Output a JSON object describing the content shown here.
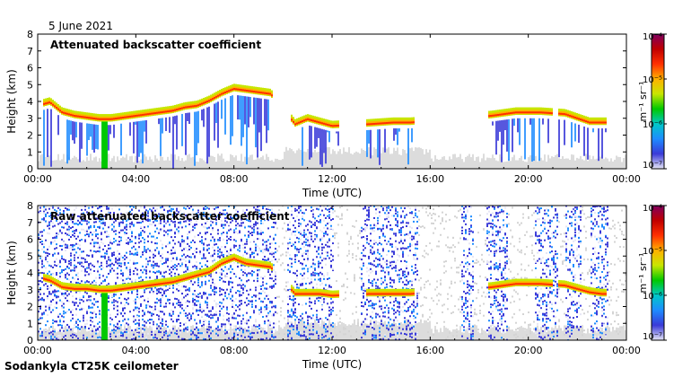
{
  "header": {
    "date": "5 June 2021"
  },
  "footer": {
    "instrument": "Sodankyla CT25K ceilometer"
  },
  "colorbar": {
    "unit": "m⁻¹ sr⁻¹",
    "ticks": [
      "10⁻⁴",
      "10⁻⁵",
      "10⁻⁶",
      "10⁻⁷"
    ],
    "colors": [
      "#e6e6f5",
      "#3a3ad8",
      "#1e8cff",
      "#00c8c8",
      "#00c800",
      "#c8e600",
      "#ffb000",
      "#ff3000",
      "#c00000",
      "#800060"
    ]
  },
  "chart_data": [
    {
      "type": "heatmap",
      "title": "Attenuated backscatter coefficient",
      "xlabel": "Time (UTC)",
      "ylabel": "Height (km)",
      "xticks": [
        "00:00",
        "04:00",
        "08:00",
        "12:00",
        "16:00",
        "20:00",
        "00:00"
      ],
      "yticks": [
        "0",
        "1",
        "2",
        "3",
        "4",
        "5",
        "6",
        "7",
        "8"
      ],
      "xlim_hours": [
        0,
        24
      ],
      "ylim_km": [
        0,
        8
      ],
      "color_scale": "log",
      "clim": [
        1e-07,
        0.0001
      ],
      "cloud_layer": {
        "time_hours": [
          0,
          0.5,
          1.0,
          1.5,
          2.0,
          2.5,
          3.0,
          3.5,
          4.0,
          4.5,
          5.0,
          5.5,
          6.0,
          6.5,
          7.0,
          7.5,
          8.0,
          8.5,
          9.0,
          9.5,
          10.5,
          11.0,
          11.5,
          12.0,
          13.5,
          14.5,
          15.2,
          18.5,
          19.5,
          20.5,
          21.5,
          22.5,
          23.0
        ],
        "base_height_km": [
          3.6,
          3.8,
          3.2,
          3.0,
          2.9,
          2.8,
          2.8,
          2.9,
          3.0,
          3.1,
          3.2,
          3.3,
          3.5,
          3.6,
          3.9,
          4.3,
          4.6,
          4.5,
          4.4,
          4.3,
          2.5,
          2.8,
          2.6,
          2.4,
          2.5,
          2.6,
          2.6,
          3.0,
          3.2,
          3.2,
          3.1,
          2.6,
          2.6
        ]
      }
    },
    {
      "type": "heatmap",
      "title": "Raw attenuated backscatter coefficient",
      "xlabel": "Time (UTC)",
      "ylabel": "Height (km)",
      "xticks": [
        "00:00",
        "04:00",
        "08:00",
        "12:00",
        "16:00",
        "20:00",
        "00:00"
      ],
      "yticks": [
        "0",
        "1",
        "2",
        "3",
        "4",
        "5",
        "6",
        "7",
        "8"
      ],
      "xlim_hours": [
        0,
        24
      ],
      "ylim_km": [
        0,
        8
      ],
      "color_scale": "log",
      "clim": [
        1e-07,
        0.0001
      ],
      "cloud_layer": {
        "time_hours": [
          0,
          0.5,
          1.0,
          1.5,
          2.0,
          2.5,
          3.0,
          3.5,
          4.0,
          4.5,
          5.0,
          5.5,
          6.0,
          6.5,
          7.0,
          7.5,
          8.0,
          8.5,
          9.0,
          9.5,
          10.5,
          11.0,
          11.5,
          12.0,
          13.5,
          14.5,
          15.2,
          18.5,
          19.5,
          20.5,
          21.5,
          22.5,
          23.0
        ],
        "base_height_km": [
          3.6,
          3.4,
          3.0,
          2.9,
          2.9,
          2.8,
          2.8,
          2.9,
          3.0,
          3.1,
          3.2,
          3.3,
          3.5,
          3.7,
          3.9,
          4.4,
          4.7,
          4.4,
          4.3,
          4.2,
          2.6,
          2.6,
          2.6,
          2.5,
          2.6,
          2.6,
          2.6,
          3.0,
          3.2,
          3.2,
          3.1,
          2.7,
          2.6
        ]
      }
    }
  ]
}
